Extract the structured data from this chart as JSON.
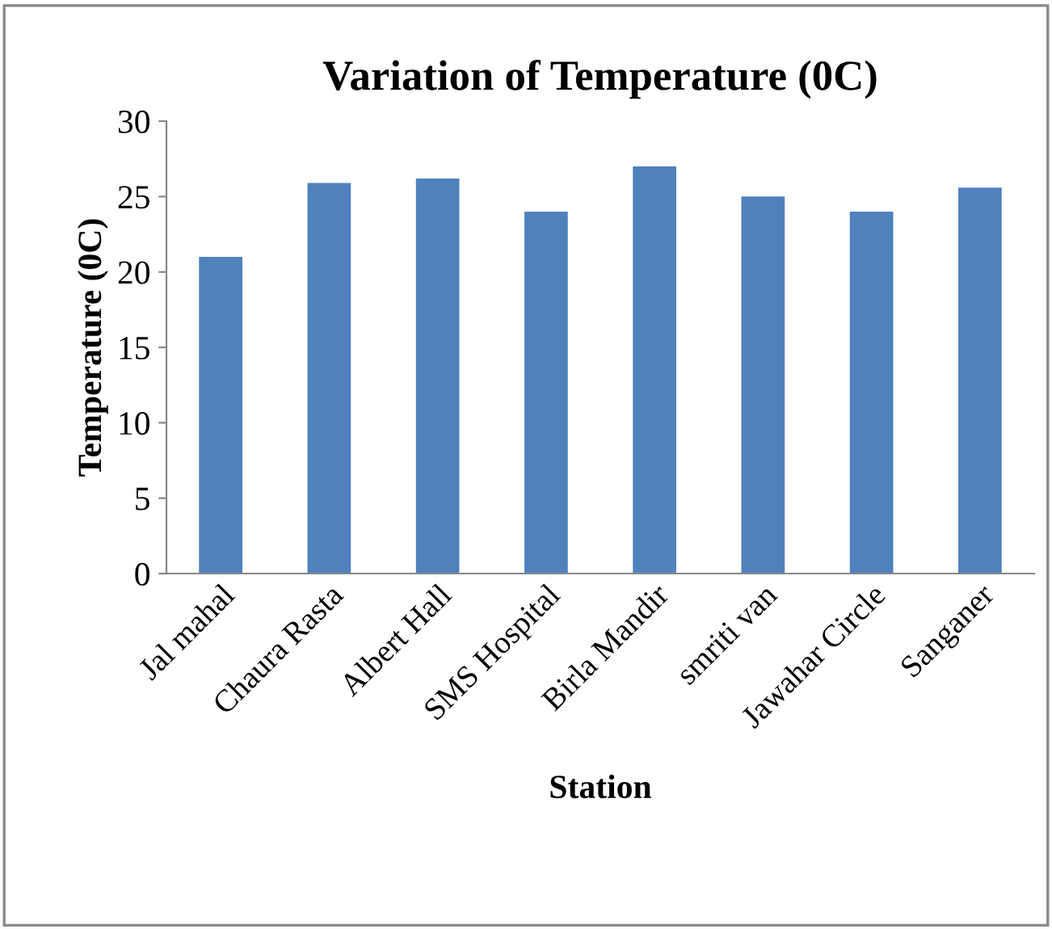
{
  "chart_data": {
    "type": "bar",
    "title": "Variation of Temperature (0C)",
    "xlabel": "Station",
    "ylabel": "Temperature (0C)",
    "categories": [
      "Jal mahal",
      "Chaura Rasta",
      "Albert Hall",
      "SMS Hospital",
      "Birla Mandir",
      "smriti van",
      "Jawahar Circle",
      "Sanganer"
    ],
    "values": [
      21,
      25.9,
      26.2,
      24,
      27,
      25,
      24,
      25.6
    ],
    "color": "#4f81bd",
    "ylim": [
      0,
      30
    ],
    "yticks": [
      0,
      5,
      10,
      15,
      20,
      25,
      30
    ],
    "grid": false,
    "legend": false
  }
}
